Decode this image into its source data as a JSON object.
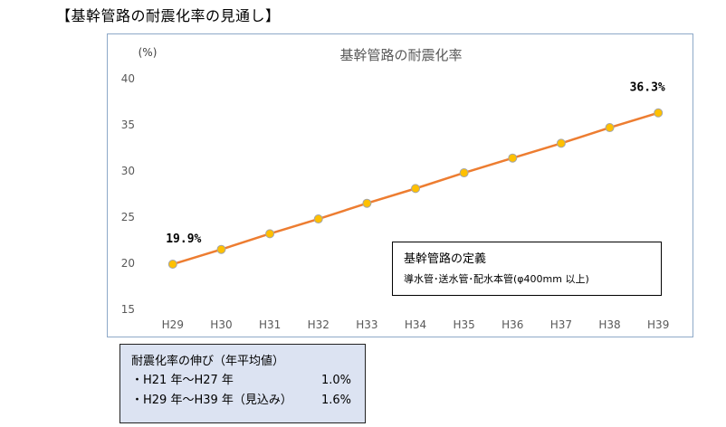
{
  "page_heading": "【基幹管路の耐震化率の見通し】",
  "chart_data": {
    "type": "line",
    "title": "基幹管路の耐震化率",
    "y_unit": "(%)",
    "categories": [
      "H29",
      "H30",
      "H31",
      "H32",
      "H33",
      "H34",
      "H35",
      "H36",
      "H37",
      "H38",
      "H39"
    ],
    "series": [
      {
        "values": [
          19.9,
          21.5,
          23.2,
          24.8,
          26.5,
          28.1,
          29.8,
          31.4,
          33.0,
          34.7,
          36.3
        ]
      }
    ],
    "ylim": [
      15,
      40
    ],
    "yticks": [
      15,
      20,
      25,
      30,
      35,
      40
    ],
    "data_labels": [
      {
        "index": 0,
        "text": "19.9%"
      },
      {
        "index": 10,
        "text": "36.3%"
      }
    ],
    "grid": false,
    "colors": {
      "line": "#ed7d31",
      "marker": "#ffc000",
      "marker_edge": "#a5a5a5"
    }
  },
  "definition_box": {
    "title": "基幹管路の定義",
    "body": "導水管･送水管･配水本管(φ400mm 以上)"
  },
  "growth_box": {
    "title": "耐震化率の伸び（年平均値）",
    "rows": [
      {
        "label": "・H21 年～H27 年",
        "value": "1.0%"
      },
      {
        "label": "・H29 年～H39 年（見込み）",
        "value": "1.6%"
      }
    ]
  }
}
